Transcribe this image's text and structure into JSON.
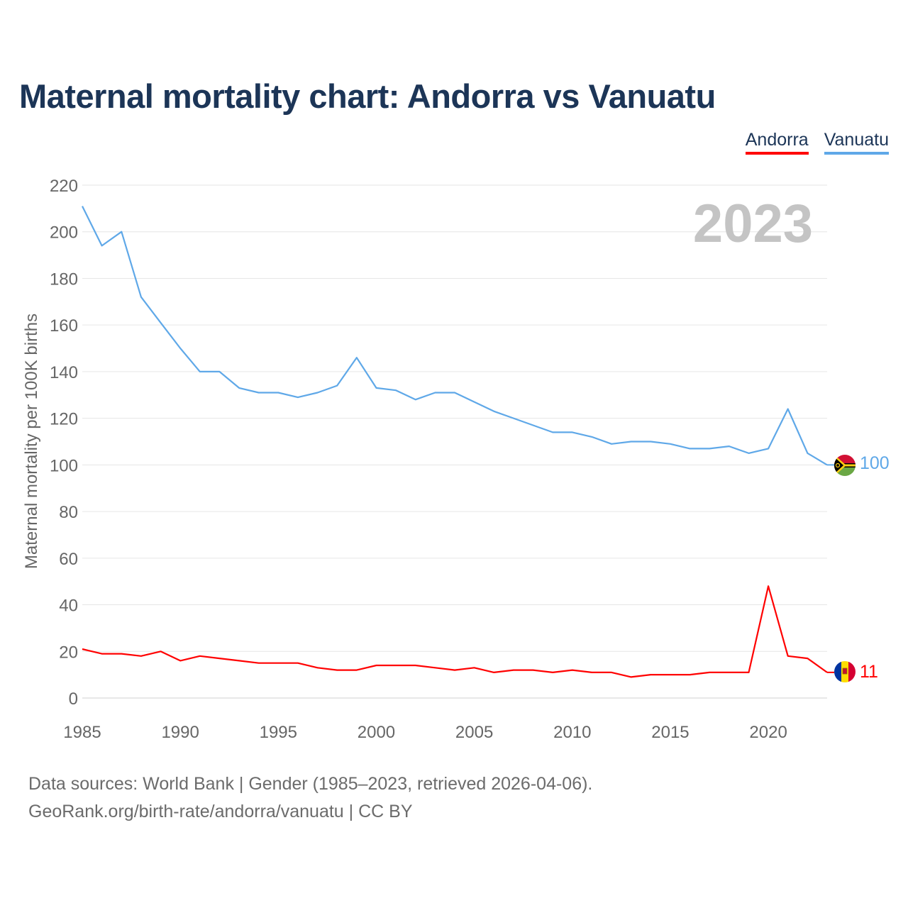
{
  "title": "Maternal mortality chart: Andorra vs Vanuatu",
  "legend": [
    {
      "name": "Andorra",
      "color": "#ff0000"
    },
    {
      "name": "Vanuatu",
      "color": "#5fa8e8"
    }
  ],
  "footer": {
    "line1": "Data sources: World Bank | Gender (1985–2023, retrieved 2026-04-06).",
    "line2": "GeoRank.org/birth-rate/andorra/vanuatu | CC BY"
  },
  "chart_data": {
    "type": "line",
    "title": "Maternal mortality chart: Andorra vs Vanuatu",
    "xlabel": "",
    "ylabel": "Maternal mortality per 100K births",
    "year_watermark": "2023",
    "xlim": [
      1985,
      2023
    ],
    "ylim": [
      0,
      220
    ],
    "xticks": [
      1985,
      1990,
      1995,
      2000,
      2005,
      2010,
      2015,
      2020
    ],
    "yticks": [
      0,
      20,
      40,
      60,
      80,
      100,
      120,
      140,
      160,
      180,
      200,
      220
    ],
    "grid": true,
    "legend_position": "top-right",
    "x": [
      1985,
      1986,
      1987,
      1988,
      1989,
      1990,
      1991,
      1992,
      1993,
      1994,
      1995,
      1996,
      1997,
      1998,
      1999,
      2000,
      2001,
      2002,
      2003,
      2004,
      2005,
      2006,
      2007,
      2008,
      2009,
      2010,
      2011,
      2012,
      2013,
      2014,
      2015,
      2016,
      2017,
      2018,
      2019,
      2020,
      2021,
      2022,
      2023
    ],
    "series": [
      {
        "name": "Vanuatu",
        "color": "#5fa8e8",
        "end_label": "100",
        "values": [
          211,
          194,
          200,
          172,
          161,
          150,
          140,
          140,
          133,
          131,
          131,
          129,
          131,
          134,
          146,
          133,
          132,
          128,
          131,
          131,
          127,
          123,
          120,
          117,
          114,
          114,
          112,
          109,
          110,
          110,
          109,
          107,
          107,
          108,
          105,
          107,
          124,
          105,
          100
        ]
      },
      {
        "name": "Andorra",
        "color": "#ff0000",
        "end_label": "11",
        "values": [
          21,
          19,
          19,
          18,
          20,
          16,
          18,
          17,
          16,
          15,
          15,
          15,
          13,
          12,
          12,
          14,
          14,
          14,
          13,
          12,
          13,
          11,
          12,
          12,
          11,
          12,
          11,
          11,
          9,
          10,
          10,
          10,
          11,
          11,
          11,
          48,
          18,
          17,
          11
        ]
      }
    ]
  }
}
